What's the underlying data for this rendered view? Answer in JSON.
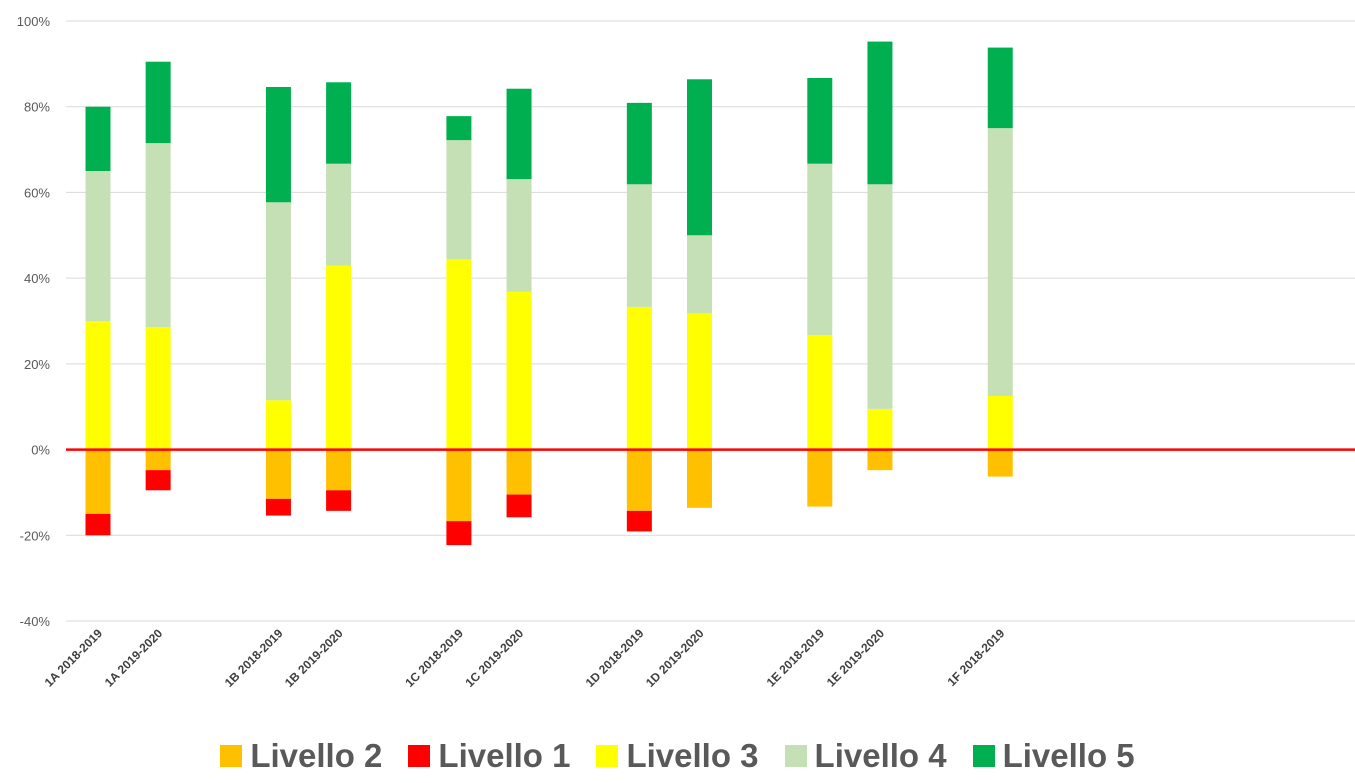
{
  "chart_data": {
    "type": "bar",
    "stacked": "diverging",
    "title": "",
    "xlabel": "",
    "ylabel": "",
    "ylim": [
      -40,
      100
    ],
    "y_ticks": [
      -40,
      -20,
      0,
      20,
      40,
      60,
      80,
      100
    ],
    "y_tick_labels": [
      "-40%",
      "-20%",
      "0%",
      "20%",
      "40%",
      "60%",
      "80%",
      "100%"
    ],
    "grid": true,
    "legend_position": "bottom",
    "categories": [
      "1A 2018-2019",
      "1A 2019-2020",
      "1B 2018-2019",
      "1B 2019-2020",
      "1C 2018-2019",
      "1C 2019-2020",
      "1D 2018-2019",
      "1D 2019-2020",
      "1E 2018-2019",
      "1E 2019-2020",
      "1F 2018-2019"
    ],
    "series": [
      {
        "name": "Livello 2",
        "color": "#FFC000",
        "values": [
          -15,
          -4.8,
          -11.5,
          -9.5,
          -16.7,
          -10.5,
          -14.3,
          -13.6,
          -13.3,
          -4.8,
          -6.3
        ]
      },
      {
        "name": "Livello 1",
        "color": "#FF0000",
        "values": [
          -5,
          -4.7,
          -3.9,
          -4.8,
          -5.6,
          -5.3,
          -4.8,
          0,
          0,
          0,
          0
        ]
      },
      {
        "name": "Livello 3",
        "color": "#FFFF00",
        "values": [
          30,
          28.6,
          11.5,
          42.9,
          44.4,
          36.8,
          33.3,
          31.8,
          26.7,
          9.5,
          12.5
        ]
      },
      {
        "name": "Livello 4",
        "color": "#C5E0B4",
        "values": [
          35,
          42.9,
          46.2,
          23.8,
          27.8,
          26.3,
          28.6,
          18.2,
          40,
          52.4,
          62.5
        ]
      },
      {
        "name": "Livello 5",
        "color": "#00B050",
        "values": [
          15,
          19,
          26.9,
          19,
          5.6,
          21.1,
          19,
          36.4,
          20,
          33.3,
          18.8
        ]
      }
    ],
    "legend_order": [
      "Livello 2",
      "Livello 1",
      "Livello 3",
      "Livello 4",
      "Livello 5"
    ]
  }
}
